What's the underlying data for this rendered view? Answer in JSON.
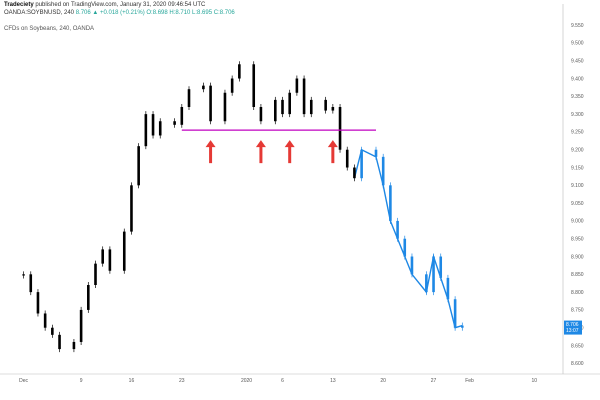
{
  "header": {
    "author": "Tradeciety",
    "published": "published on TradingView.com, January 31, 2020 09:46:54 UTC",
    "symbol": "OANDA:SOYBNUSD, 240",
    "ohlc": "8.706 ▲ +0.018 (+0.21%) O:8.698 H:8.710 L:8.695 C:8.706",
    "pane_title": "CFDs on Soybeans, 240, OANDA"
  },
  "colors": {
    "accent_line": "#c000c0",
    "arrow": "#e53935",
    "series_line": "#1e88e5",
    "candle": "#000000",
    "last_label_bg": "#1e88e5"
  },
  "chart_data": {
    "type": "line",
    "series": [
      {
        "name": "",
        "x": [
          "2019-12-01",
          "2019-12-02",
          "2019-12-03",
          "2019-12-04",
          "2019-12-05",
          "2019-12-06",
          "2019-12-08",
          "2019-12-09",
          "2019-12-10",
          "2019-12-11",
          "2019-12-12",
          "2019-12-13",
          "2019-12-15",
          "2019-12-16",
          "2019-12-17",
          "2019-12-18",
          "2019-12-19",
          "2019-12-20",
          "2019-12-22",
          "2019-12-23",
          "2019-12-24",
          "2019-12-26",
          "2019-12-27",
          "2019-12-29",
          "2019-12-30",
          "2019-12-31",
          "2020-01-02",
          "2020-01-03",
          "2020-01-05",
          "2020-01-06",
          "2020-01-07",
          "2020-01-08",
          "2020-01-09",
          "2020-01-10",
          "2020-01-12",
          "2020-01-13",
          "2020-01-14",
          "2020-01-15",
          "2020-01-16",
          "2020-01-17",
          "2020-01-19",
          "2020-01-20",
          "2020-01-21",
          "2020-01-22",
          "2020-01-23",
          "2020-01-24",
          "2020-01-26",
          "2020-01-27",
          "2020-01-28",
          "2020-01-29",
          "2020-01-30",
          "2020-01-31"
        ],
        "values": [
          8.85,
          8.8,
          8.74,
          8.7,
          8.68,
          8.64,
          8.66,
          8.75,
          8.82,
          8.88,
          8.92,
          8.86,
          8.97,
          9.1,
          9.21,
          9.3,
          9.24,
          9.28,
          9.27,
          9.32,
          9.37,
          9.38,
          9.28,
          9.36,
          9.4,
          9.44,
          9.32,
          9.28,
          9.34,
          9.3,
          9.36,
          9.4,
          9.3,
          9.34,
          9.31,
          9.32,
          9.2,
          9.15,
          9.12,
          9.2,
          9.18,
          9.1,
          9.0,
          8.95,
          8.9,
          8.85,
          8.8,
          8.9,
          8.84,
          8.78,
          8.7,
          8.706
        ]
      }
    ],
    "title": "",
    "xlabel": "",
    "ylabel": "",
    "xticks": [
      "Dec",
      "9",
      "16",
      "23",
      "2020",
      "6",
      "13",
      "20",
      "27",
      "Feb",
      "10"
    ],
    "yticks": [
      "9.550",
      "9.500",
      "9.450",
      "9.400",
      "9.350",
      "9.300",
      "9.250",
      "9.200",
      "9.150",
      "9.100",
      "9.050",
      "9.000",
      "8.950",
      "8.900",
      "8.850",
      "8.800",
      "8.750",
      "8.700",
      "8.650",
      "8.600"
    ],
    "ylim": [
      8.57,
      9.57
    ],
    "xlim": [
      "2019-11-28",
      "2020-02-14"
    ],
    "grid": false,
    "support_level": 9.255,
    "support_arrows_at": [
      "2019-12-27",
      "2020-01-03",
      "2020-01-07",
      "2020-01-13"
    ],
    "last_price_label": "8.706",
    "countdown_label": "13:07"
  }
}
